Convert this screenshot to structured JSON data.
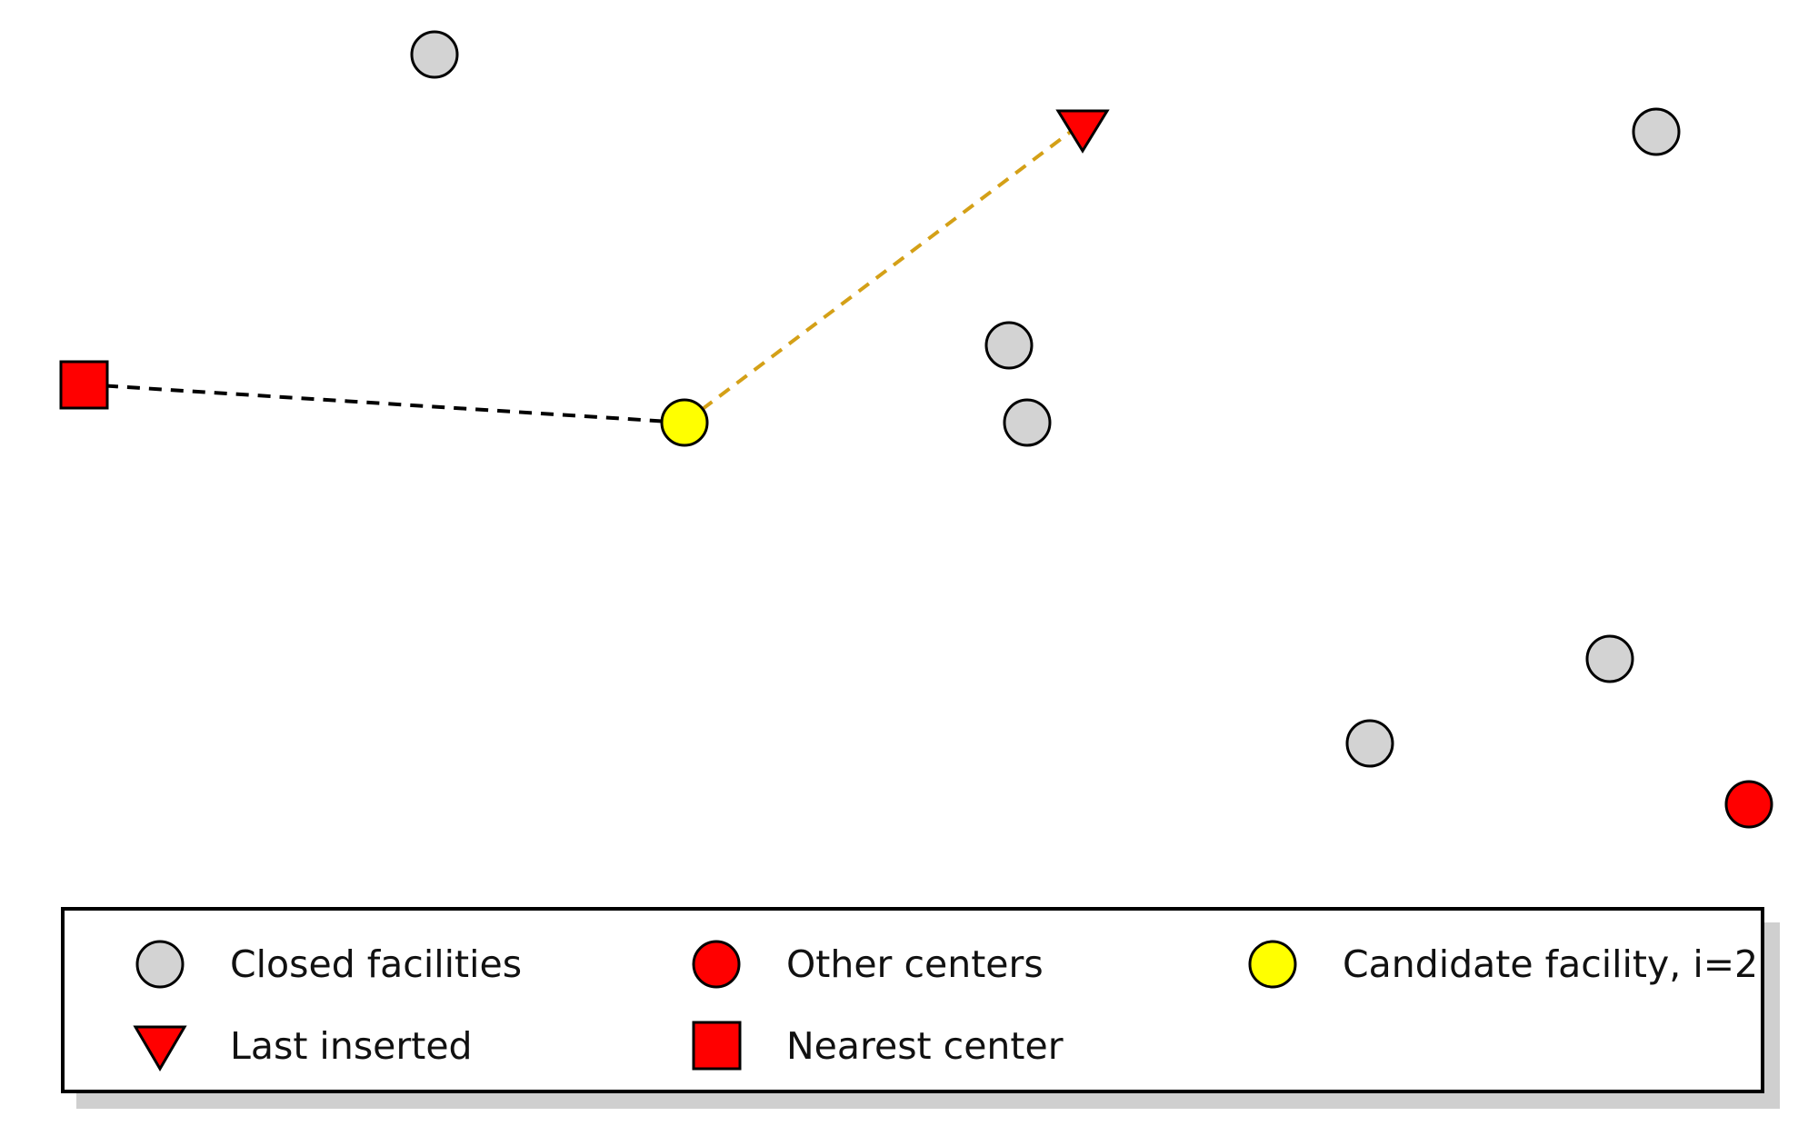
{
  "colors": {
    "closed": "#d3d3d3",
    "center": "#ff0000",
    "candidate": "#ffff00",
    "stroke": "#000000",
    "line_nearest": "#000000",
    "line_last": "#d4a017"
  },
  "nodes": [
    {
      "id": "closed-1",
      "kind": "closed"
    },
    {
      "id": "closed-2",
      "kind": "closed"
    },
    {
      "id": "closed-3",
      "kind": "closed"
    },
    {
      "id": "closed-4",
      "kind": "closed"
    },
    {
      "id": "closed-5",
      "kind": "closed"
    },
    {
      "id": "closed-6",
      "kind": "closed"
    },
    {
      "id": "other-center-1",
      "kind": "center"
    },
    {
      "id": "candidate",
      "kind": "candidate"
    },
    {
      "id": "last-inserted",
      "kind": "last"
    },
    {
      "id": "nearest-center",
      "kind": "nearest"
    }
  ],
  "edges": [
    {
      "from": "nearest-center",
      "to": "candidate",
      "style": "nearest"
    },
    {
      "from": "candidate",
      "to": "last-inserted",
      "style": "last"
    }
  ],
  "legend": {
    "closed": "Closed facilities",
    "center": "Other centers",
    "candidate": "Candidate facility, i=2",
    "last": "Last inserted",
    "nearest": "Nearest center"
  }
}
